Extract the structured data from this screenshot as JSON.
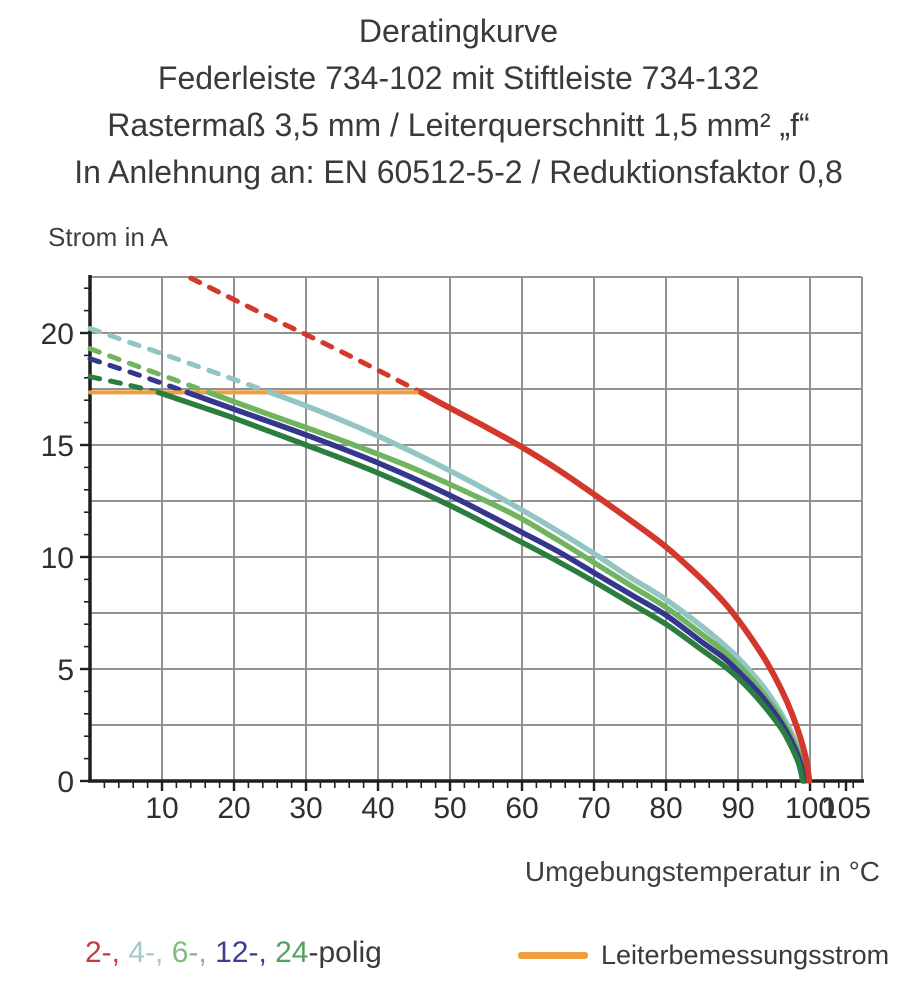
{
  "title": {
    "line1": "Deratingkurve",
    "line2": "Federleiste 734-102 mit Stiftleiste 734-132",
    "line3": "Rastermaß 3,5 mm / Leiterquerschnitt 1,5 mm² „f“",
    "line4": "In Anlehnung an: EN 60512-5-2 / Reduktionsfaktor 0,8"
  },
  "chart_data": {
    "type": "line",
    "xlabel": "Umgebungstemperatur in °C",
    "ylabel": "Strom in A",
    "xlim": [
      0,
      107
    ],
    "ylim": [
      0,
      22.5
    ],
    "x_major_ticks": [
      10,
      20,
      30,
      40,
      50,
      60,
      70,
      80,
      90,
      100,
      105
    ],
    "y_major_ticks": [
      0,
      5,
      10,
      15,
      20
    ],
    "x_grid_step": 10,
    "y_grid_step": 2.5,
    "x_minor_step": 2,
    "y_minor_step": 1,
    "grid": true,
    "grid_color": "#929292",
    "axis_color": "#1f1f1f",
    "rated_line": {
      "label": "Leiterbemessungsstrom",
      "value": 17.35,
      "x_from": 0,
      "x_to": 46,
      "color": "#ef9d3e"
    },
    "series": [
      {
        "name": "4-polig",
        "color": "#92c5c3",
        "dashed": [
          [
            0,
            20.2
          ],
          [
            12,
            18.85
          ],
          [
            25,
            17.35
          ]
        ],
        "solid": [
          [
            25,
            17.35
          ],
          [
            30,
            16.75
          ],
          [
            35,
            16.1
          ],
          [
            40,
            15.4
          ],
          [
            45,
            14.65
          ],
          [
            50,
            13.85
          ],
          [
            55,
            13.0
          ],
          [
            60,
            12.1
          ],
          [
            65,
            11.15
          ],
          [
            70,
            10.15
          ],
          [
            75,
            9.1
          ],
          [
            80,
            8.1
          ],
          [
            85,
            6.9
          ],
          [
            88,
            6.1
          ],
          [
            90,
            5.5
          ],
          [
            92,
            4.8
          ],
          [
            94,
            4.0
          ],
          [
            96,
            3.0
          ],
          [
            97.5,
            2.1
          ],
          [
            98.8,
            1.1
          ],
          [
            99.6,
            0
          ]
        ]
      },
      {
        "name": "6-polig",
        "color": "#70b45f",
        "dashed": [
          [
            0,
            19.3
          ],
          [
            8,
            18.35
          ],
          [
            16.5,
            17.35
          ]
        ],
        "solid": [
          [
            16.5,
            17.35
          ],
          [
            25,
            16.35
          ],
          [
            35,
            15.2
          ],
          [
            45,
            13.95
          ],
          [
            55,
            12.5
          ],
          [
            60,
            11.7
          ],
          [
            65,
            10.75
          ],
          [
            70,
            9.75
          ],
          [
            75,
            8.75
          ],
          [
            80,
            7.75
          ],
          [
            85,
            6.55
          ],
          [
            88,
            5.8
          ],
          [
            90,
            5.2
          ],
          [
            92,
            4.5
          ],
          [
            94,
            3.7
          ],
          [
            96,
            2.8
          ],
          [
            97.5,
            1.9
          ],
          [
            98.7,
            1.0
          ],
          [
            99.4,
            0
          ]
        ]
      },
      {
        "name": "12-polig",
        "color": "#34378d",
        "dashed": [
          [
            0,
            18.85
          ],
          [
            7,
            18.1
          ],
          [
            13.5,
            17.35
          ]
        ],
        "solid": [
          [
            13.5,
            17.35
          ],
          [
            20,
            16.6
          ],
          [
            30,
            15.45
          ],
          [
            40,
            14.2
          ],
          [
            50,
            12.75
          ],
          [
            60,
            11.1
          ],
          [
            65,
            10.25
          ],
          [
            70,
            9.3
          ],
          [
            75,
            8.35
          ],
          [
            80,
            7.4
          ],
          [
            85,
            6.2
          ],
          [
            88,
            5.5
          ],
          [
            90,
            4.9
          ],
          [
            92,
            4.25
          ],
          [
            94,
            3.5
          ],
          [
            96,
            2.6
          ],
          [
            97.4,
            1.8
          ],
          [
            98.6,
            0.9
          ],
          [
            99.2,
            0
          ]
        ]
      },
      {
        "name": "24-polig",
        "color": "#2c7e3e",
        "dashed": [
          [
            0,
            18.05
          ],
          [
            5,
            17.7
          ],
          [
            9.5,
            17.35
          ]
        ],
        "solid": [
          [
            9.5,
            17.35
          ],
          [
            15,
            16.75
          ],
          [
            20,
            16.2
          ],
          [
            30,
            15.0
          ],
          [
            40,
            13.75
          ],
          [
            50,
            12.3
          ],
          [
            60,
            10.65
          ],
          [
            65,
            9.8
          ],
          [
            70,
            8.9
          ],
          [
            75,
            7.95
          ],
          [
            80,
            7.0
          ],
          [
            85,
            5.85
          ],
          [
            88,
            5.15
          ],
          [
            90,
            4.6
          ],
          [
            92,
            3.95
          ],
          [
            94,
            3.2
          ],
          [
            96,
            2.35
          ],
          [
            97.3,
            1.6
          ],
          [
            98.4,
            0.8
          ],
          [
            99,
            0
          ]
        ]
      },
      {
        "name": "2-polig",
        "color": "#d2382c",
        "dashed": [
          [
            14,
            22.45
          ],
          [
            25,
            20.7
          ],
          [
            35,
            19.15
          ],
          [
            46,
            17.35
          ]
        ],
        "solid": [
          [
            46,
            17.35
          ],
          [
            50,
            16.65
          ],
          [
            55,
            15.8
          ],
          [
            60,
            14.9
          ],
          [
            65,
            13.9
          ],
          [
            70,
            12.8
          ],
          [
            75,
            11.65
          ],
          [
            80,
            10.45
          ],
          [
            85,
            9.0
          ],
          [
            88,
            8.0
          ],
          [
            90,
            7.2
          ],
          [
            92,
            6.3
          ],
          [
            94,
            5.3
          ],
          [
            96,
            4.1
          ],
          [
            97.5,
            3.0
          ],
          [
            98.7,
            1.9
          ],
          [
            99.5,
            0.9
          ],
          [
            99.9,
            0
          ]
        ]
      }
    ]
  },
  "legend": {
    "pole_items": [
      {
        "text": "2-, ",
        "color": "#cb3a41"
      },
      {
        "text": "4-, ",
        "color": "#a2cacc"
      },
      {
        "text": "6-, ",
        "color": "#82bb7b"
      },
      {
        "text": "12-, ",
        "color": "#3c3f91"
      },
      {
        "text": "24",
        "color": "#54a262"
      },
      {
        "text": "-polig",
        "color": "#3a3a3a"
      }
    ],
    "rated_label": "Leiterbemessungsstrom",
    "rated_color": "#ef9d3e"
  }
}
